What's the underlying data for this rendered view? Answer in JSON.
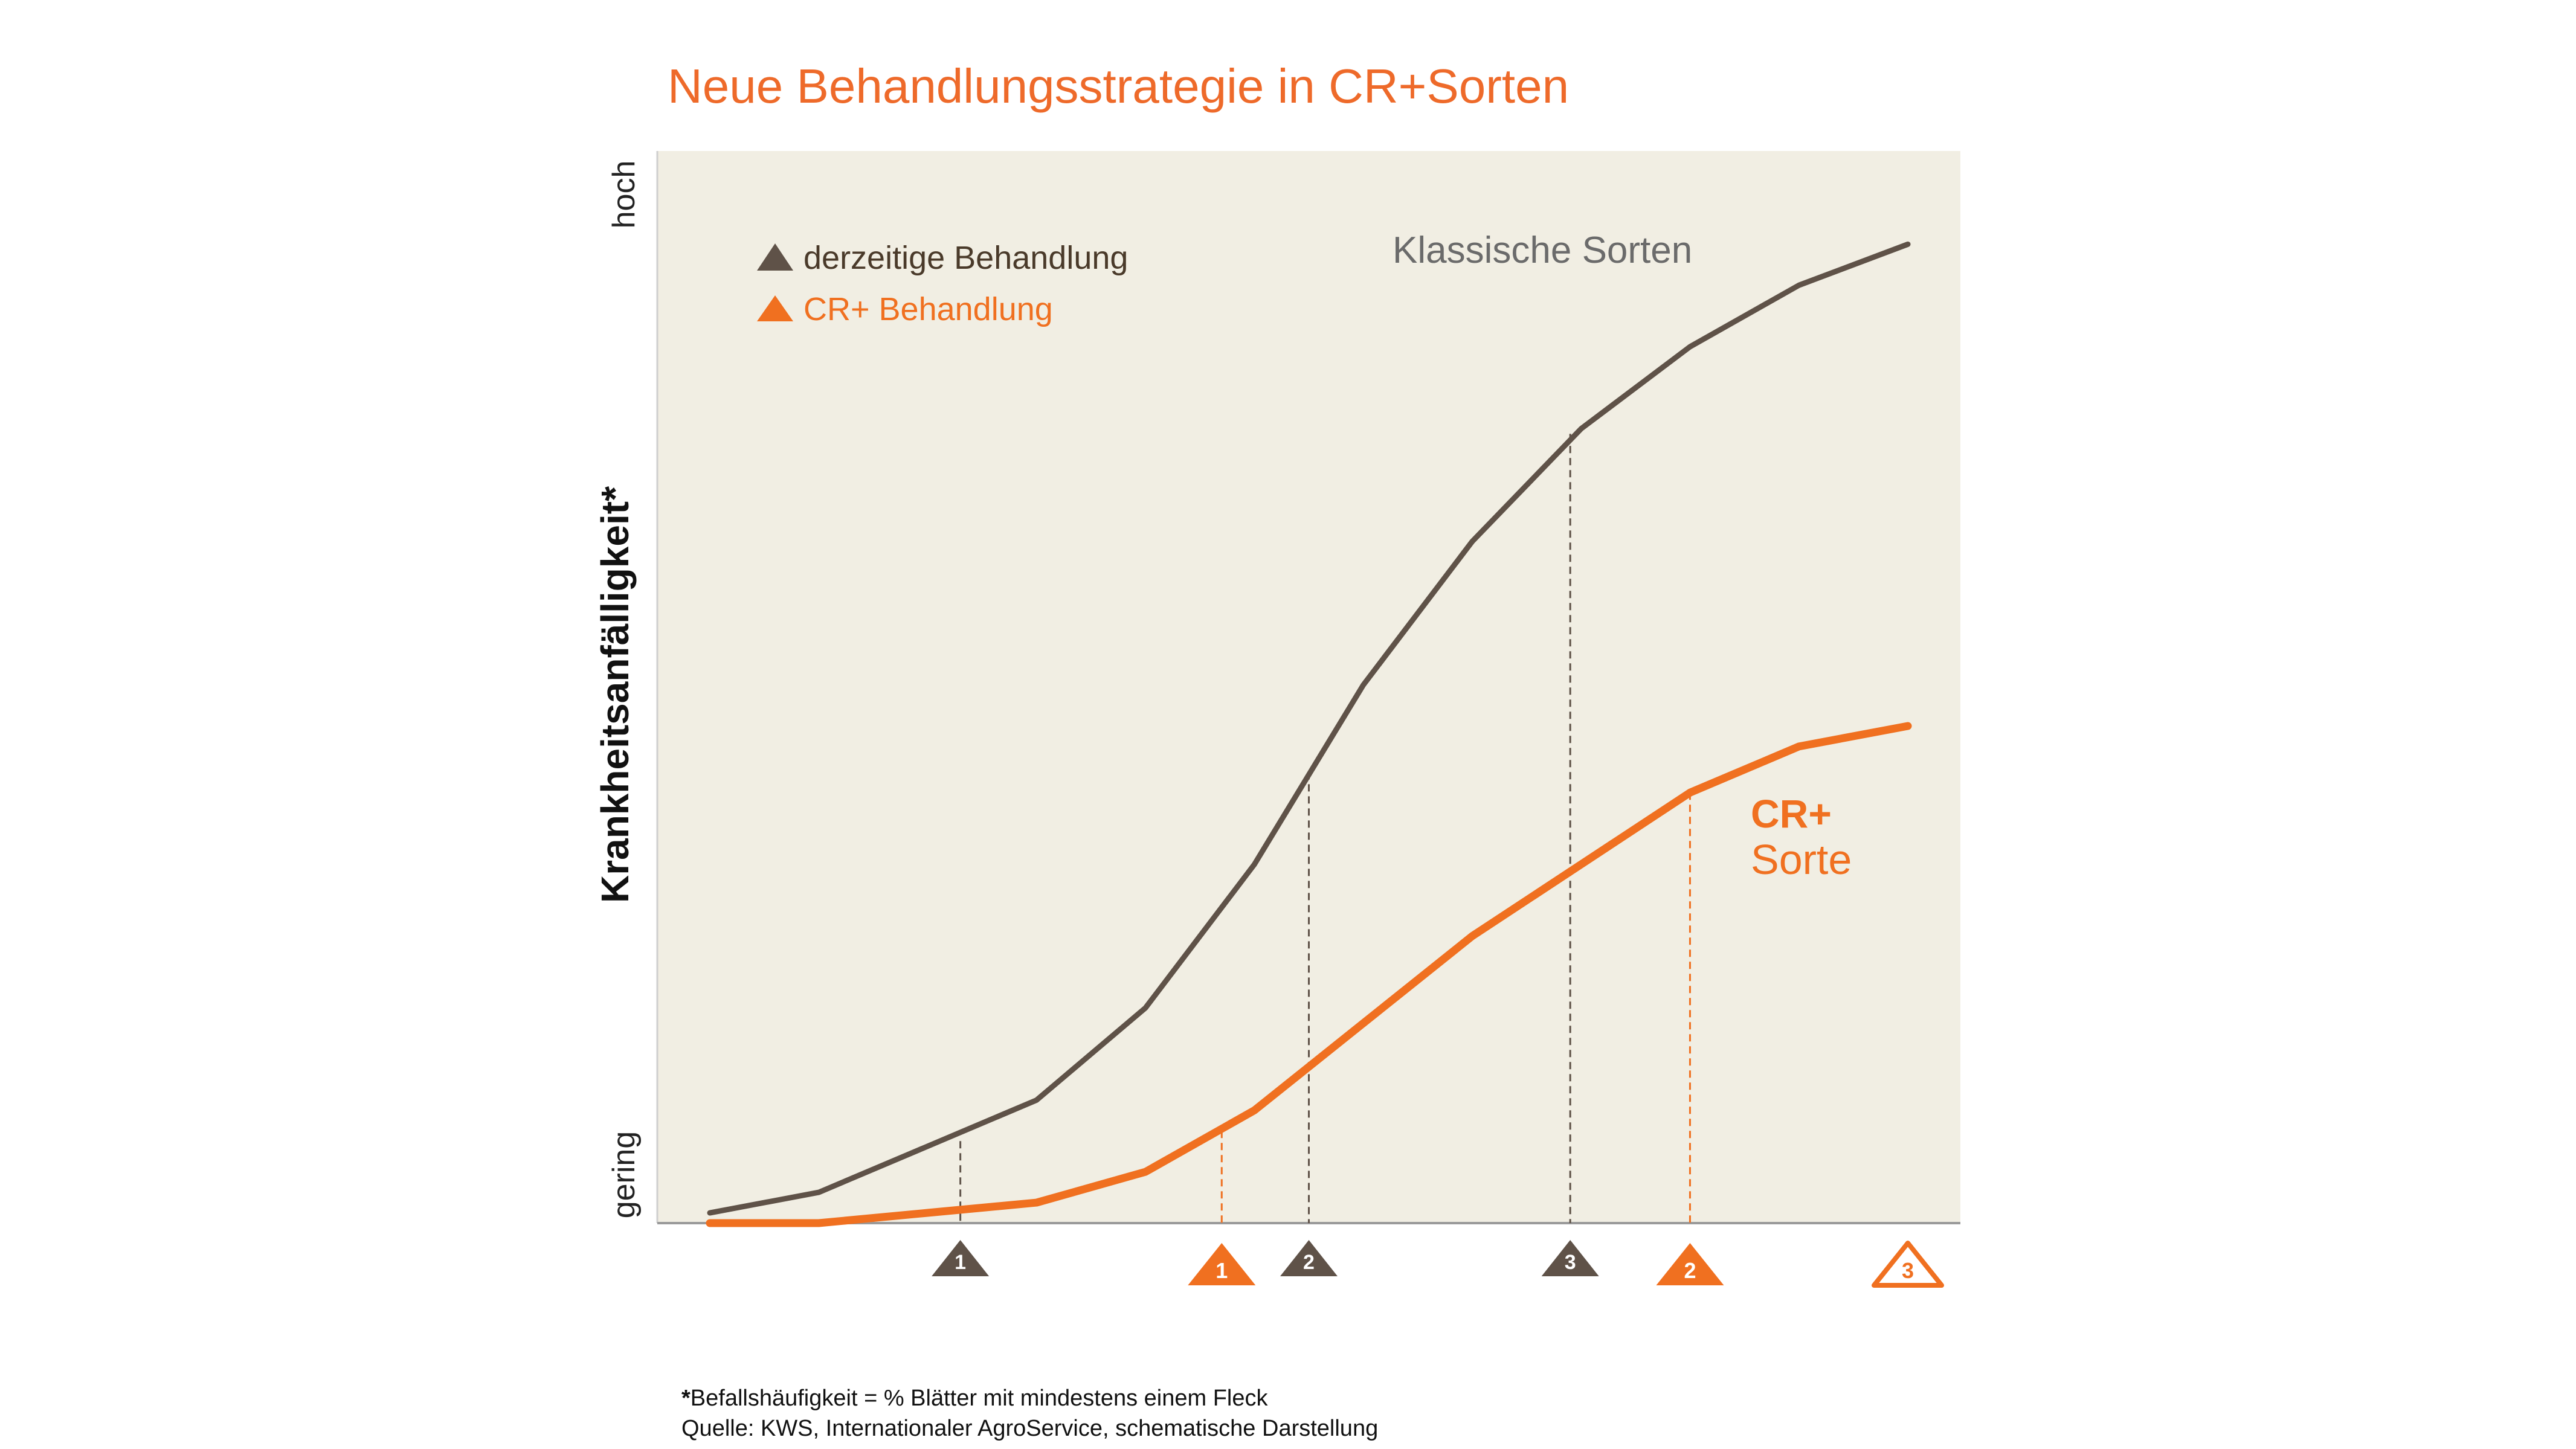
{
  "colors": {
    "orange": "#f07020",
    "brown": "#5f5248",
    "plot_bg": "#f1eee3",
    "title": "#ee6a2a",
    "grey_label": "#6b6b6b",
    "legend_brown": "#4a3a2a"
  },
  "chart_data": {
    "type": "line",
    "title": "Neue Behandlungsstrategie in CR+Sorten",
    "ylabel": "Krankheitsanfälligkeit*",
    "ytick_high": "hoch",
    "ytick_low": "gering",
    "xlabel": "",
    "xlim": [
      0,
      11
    ],
    "ylim": [
      0,
      100
    ],
    "grid": false,
    "legend_position": "top-left",
    "x": [
      0,
      1,
      2,
      3,
      4,
      5,
      6,
      7,
      8,
      9,
      10,
      11
    ],
    "series": [
      {
        "name": "Klassische Sorten",
        "label": "Klassische Sorten",
        "color": "#5f5248",
        "values": [
          1,
          3,
          7.5,
          12,
          21,
          35,
          52.5,
          66.5,
          77.5,
          85.5,
          91.5,
          95.5
        ]
      },
      {
        "name": "CR+ Sorte",
        "label": "CR+\nSorte",
        "label_lines": [
          "CR+",
          "Sorte"
        ],
        "color": "#f07020",
        "values": [
          0,
          0,
          1,
          2,
          5,
          11,
          19.5,
          28,
          35,
          42,
          46.5,
          48.5
        ]
      }
    ],
    "legend": [
      {
        "label": "derzeitige Behandlung",
        "color": "#5f5248"
      },
      {
        "label": "CR+ Behandlung",
        "color": "#f07020"
      }
    ],
    "treatments": [
      {
        "label": "1",
        "strategy": "derzeitige",
        "x": 2.3,
        "y_line": 8
      },
      {
        "label": "2",
        "strategy": "derzeitige",
        "x": 5.5,
        "y_line": 44
      },
      {
        "label": "3",
        "strategy": "derzeitige",
        "x": 7.9,
        "y_line": 77
      },
      {
        "label": "1",
        "strategy": "CR+",
        "x": 4.7,
        "y_line": 9
      },
      {
        "label": "2",
        "strategy": "CR+",
        "x": 9.0,
        "y_line": 42
      },
      {
        "label": "3",
        "strategy": "CR+",
        "x": 11.0,
        "y_line": null,
        "outline": true
      }
    ]
  },
  "footnote": {
    "line1_star": "*",
    "line1_text": "Befallshäufigkeit = % Blätter mit mindestens einem Fleck",
    "line2": "Quelle: KWS, Internationaler AgroService, schematische Darstellung"
  }
}
